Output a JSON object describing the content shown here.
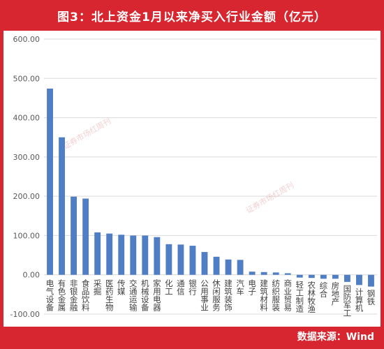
{
  "header": {
    "title": "图3：北上资金1月以来净买入行业金额（亿元）"
  },
  "footer": {
    "source": "数据来源：Wind"
  },
  "watermark": {
    "text": "证券市场红周刊"
  },
  "colors": {
    "frame": "#d7262f",
    "bar": "#4f7ec4",
    "grid": "#d9d9d9",
    "axis_text": "#595959"
  },
  "chart_data": {
    "type": "bar",
    "title": "图3：北上资金1月以来净买入行业金额（亿元）",
    "xlabel": "",
    "ylabel": "",
    "ylim": [
      -100,
      600
    ],
    "yticks": [
      "600.00",
      "500.00",
      "400.00",
      "300.00",
      "200.00",
      "100.00",
      "0.00",
      "-100.00"
    ],
    "ytick_values": [
      600,
      500,
      400,
      300,
      200,
      100,
      0,
      -100
    ],
    "grid": true,
    "categories": [
      "电气设备",
      "有色金属",
      "非银金融",
      "食品饮料",
      "采掘",
      "医药生物",
      "传媒",
      "交通运输",
      "机械设备",
      "家用电器",
      "化工",
      "通信",
      "银行",
      "公用事业",
      "休闲服务",
      "建筑装饰",
      "汽车",
      "电子",
      "建筑材料",
      "纺织服装",
      "商业贸易",
      "轻工制造",
      "农林牧渔",
      "综合",
      "房地产",
      "国防军工",
      "计算机",
      "钢铁"
    ],
    "values": [
      474,
      350,
      199,
      194,
      108,
      105,
      102,
      100,
      100,
      96,
      78,
      77,
      74,
      58,
      46,
      39,
      38,
      8,
      7,
      6,
      4,
      -7,
      -8,
      -10,
      -10,
      -18,
      -26,
      -30
    ]
  }
}
